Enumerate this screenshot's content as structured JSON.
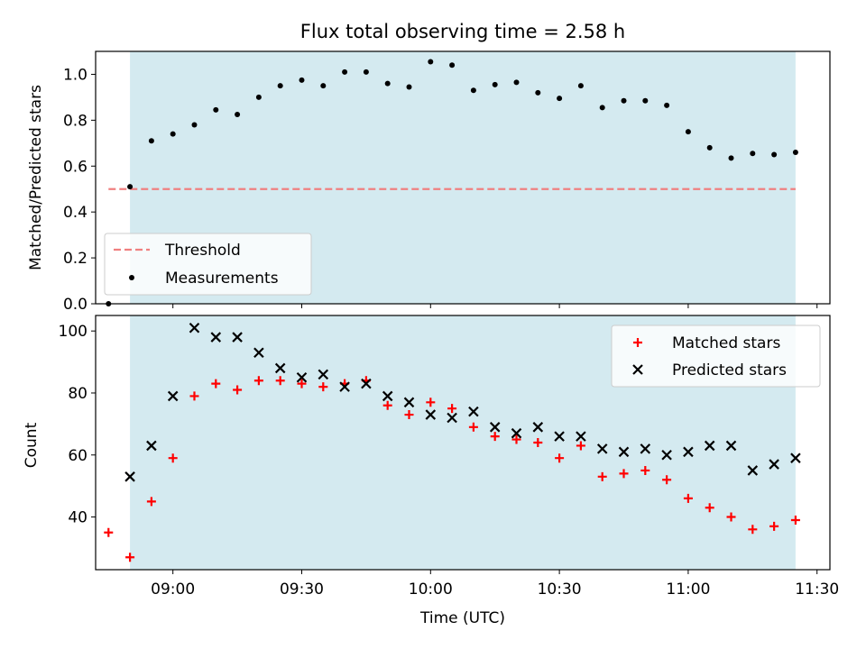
{
  "chart_data": [
    {
      "type": "scatter",
      "title": "Flux total observing time = 2.58 h",
      "xlabel": "",
      "ylabel": "Matched/Predicted stars",
      "xlim": [
        "08:42",
        "11:33"
      ],
      "ylim": [
        0,
        1.1
      ],
      "yticks": [
        "0.0",
        "0.2",
        "0.4",
        "0.6",
        "0.8",
        "1.0"
      ],
      "shaded_region": [
        "08:50",
        "11:25"
      ],
      "shade_color": "#d4eaf0",
      "legend_position": "lower-left",
      "threshold": {
        "name": "Threshold",
        "y": 0.5,
        "x_range": [
          "08:45",
          "11:25"
        ],
        "color": "#f08080"
      },
      "series": [
        {
          "name": "Measurements",
          "marker": "dot",
          "color": "#000000",
          "x": [
            "08:45",
            "08:50",
            "08:55",
            "09:00",
            "09:05",
            "09:10",
            "09:15",
            "09:20",
            "09:25",
            "09:30",
            "09:35",
            "09:40",
            "09:45",
            "09:50",
            "09:55",
            "10:00",
            "10:05",
            "10:10",
            "10:15",
            "10:20",
            "10:25",
            "10:30",
            "10:35",
            "10:40",
            "10:45",
            "10:50",
            "10:55",
            "11:00",
            "11:05",
            "11:10",
            "11:15",
            "11:20",
            "11:25"
          ],
          "y": [
            0.0,
            0.51,
            0.71,
            0.74,
            0.78,
            0.845,
            0.825,
            0.9,
            0.95,
            0.975,
            0.95,
            1.01,
            1.01,
            0.96,
            0.945,
            1.055,
            1.04,
            0.93,
            0.955,
            0.965,
            0.92,
            0.895,
            0.95,
            0.855,
            0.885,
            0.885,
            0.865,
            0.75,
            0.68,
            0.635,
            0.655,
            0.65,
            0.66
          ]
        }
      ]
    },
    {
      "type": "scatter",
      "title": "",
      "xlabel": "Time (UTC)",
      "ylabel": "Count",
      "xlim": [
        "08:42",
        "11:33"
      ],
      "ylim": [
        23,
        105
      ],
      "xticks": [
        "09:00",
        "09:30",
        "10:00",
        "10:30",
        "11:00",
        "11:30"
      ],
      "yticks": [
        40,
        60,
        80,
        100
      ],
      "shaded_region": [
        "08:50",
        "11:25"
      ],
      "legend_position": "upper-right",
      "series": [
        {
          "name": "Matched stars",
          "marker": "plus",
          "color": "#ff0000",
          "x": [
            "08:45",
            "08:50",
            "08:55",
            "09:00",
            "09:05",
            "09:10",
            "09:15",
            "09:20",
            "09:25",
            "09:30",
            "09:35",
            "09:40",
            "09:45",
            "09:50",
            "09:55",
            "10:00",
            "10:05",
            "10:10",
            "10:15",
            "10:20",
            "10:25",
            "10:30",
            "10:35",
            "10:40",
            "10:45",
            "10:50",
            "10:55",
            "11:00",
            "11:05",
            "11:10",
            "11:15",
            "11:20",
            "11:25"
          ],
          "y": [
            35,
            27,
            45,
            59,
            79,
            83,
            81,
            84,
            84,
            83,
            82,
            83,
            84,
            76,
            73,
            77,
            75,
            69,
            66,
            65,
            64,
            59,
            63,
            53,
            54,
            55,
            52,
            46,
            43,
            40,
            36,
            37,
            39
          ]
        },
        {
          "name": "Predicted stars",
          "marker": "x",
          "color": "#000000",
          "x": [
            "08:50",
            "08:55",
            "09:00",
            "09:05",
            "09:10",
            "09:15",
            "09:20",
            "09:25",
            "09:30",
            "09:35",
            "09:40",
            "09:45",
            "09:50",
            "09:55",
            "10:00",
            "10:05",
            "10:10",
            "10:15",
            "10:20",
            "10:25",
            "10:30",
            "10:35",
            "10:40",
            "10:45",
            "10:50",
            "10:55",
            "11:00",
            "11:05",
            "11:10",
            "11:15",
            "11:20",
            "11:25"
          ],
          "y": [
            53,
            63,
            79,
            101,
            98,
            98,
            93,
            88,
            85,
            86,
            82,
            83,
            79,
            77,
            73,
            72,
            74,
            69,
            67,
            69,
            66,
            66,
            62,
            61,
            62,
            60,
            61,
            63,
            63,
            55,
            57,
            59
          ]
        }
      ]
    }
  ]
}
